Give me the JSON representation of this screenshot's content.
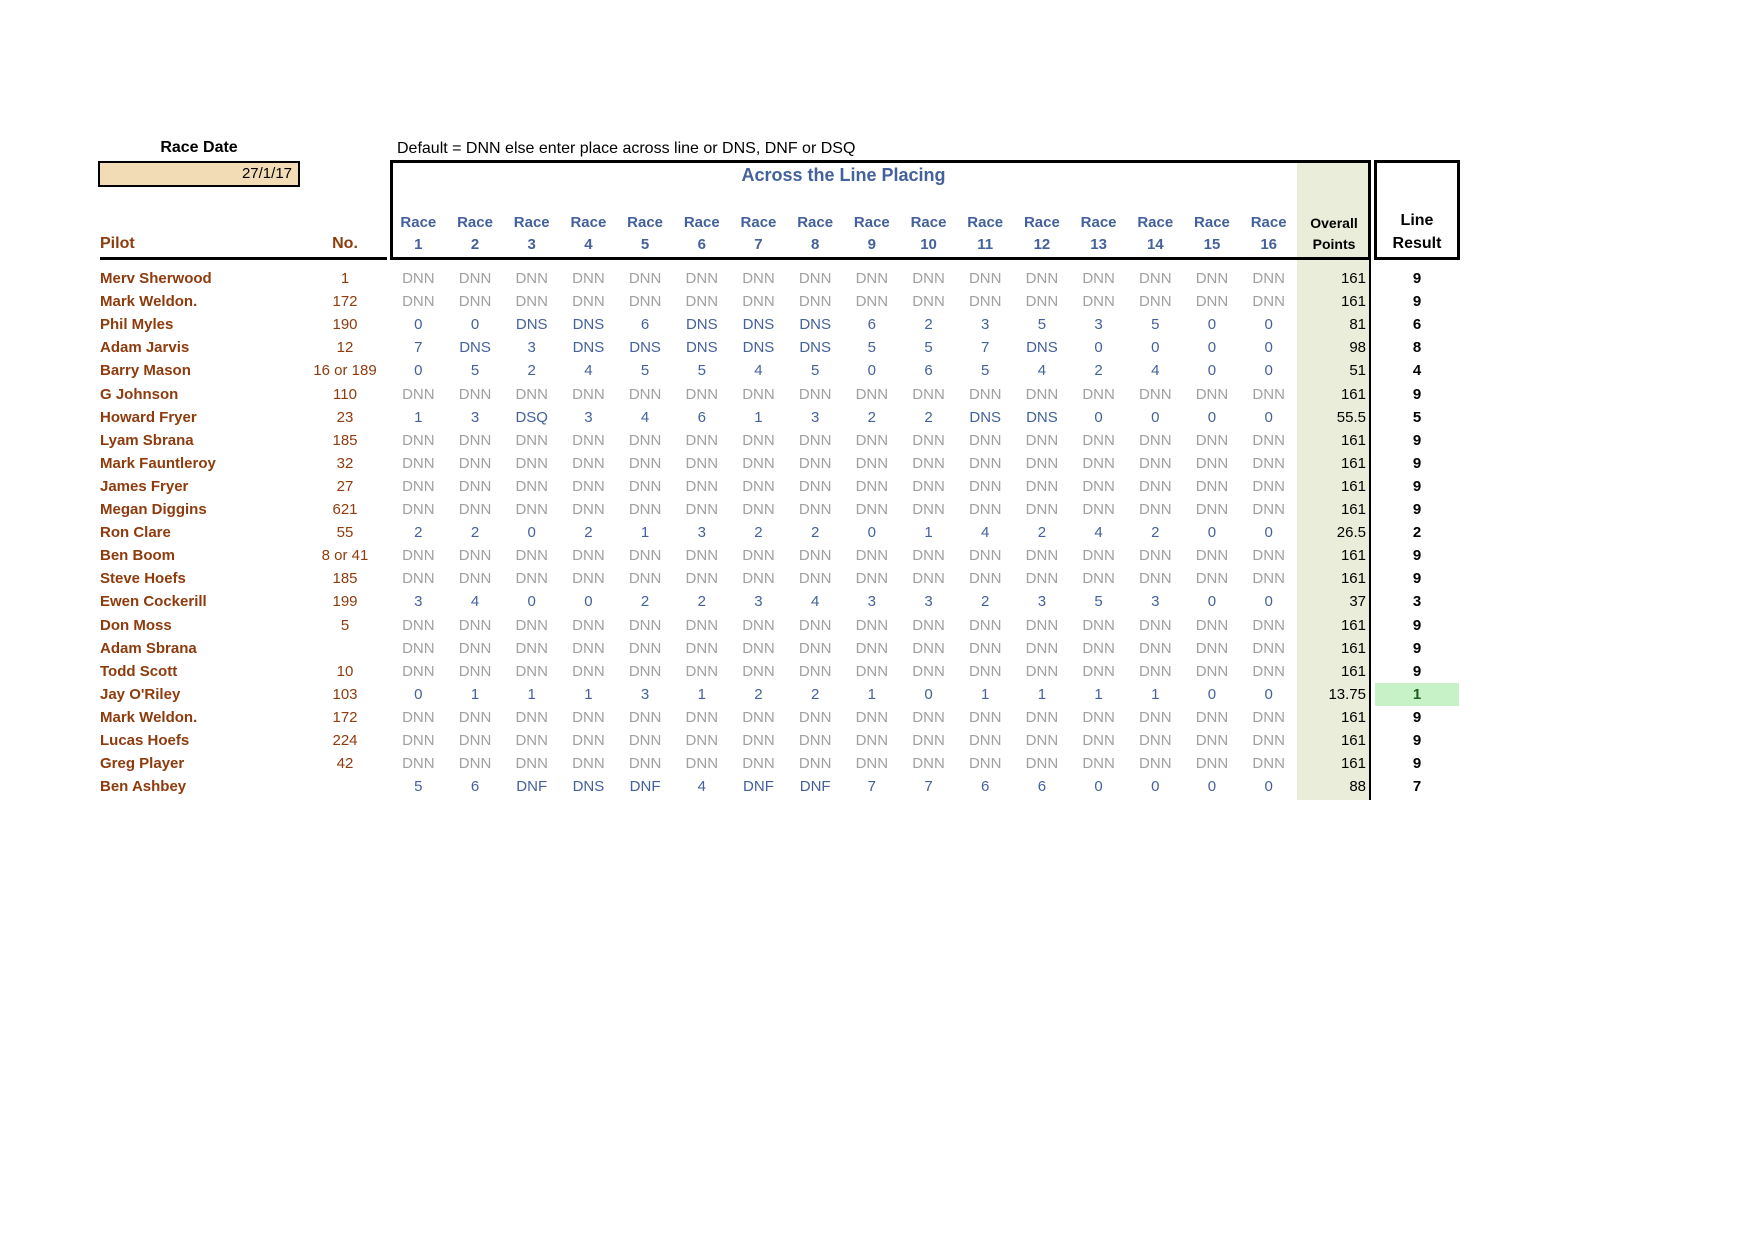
{
  "page": {
    "race_date_label": "Race Date",
    "race_date_value": "27/1/17",
    "instruction": "Default = DNN else enter place across line or DNS, DNF or DSQ"
  },
  "colors": {
    "pilot_brown": "#8E3B0D",
    "value_blue": "#44619B",
    "dnn_gray": "#A0A0A0",
    "overall_col_bg": "#EAEDDA",
    "date_cell_bg": "#F2DCB6",
    "highlight_bg": "#C7F2C7",
    "highlight_text": "#1E5B1E"
  },
  "table": {
    "title": "Across the Line Placing",
    "pilot_header": "Pilot",
    "no_header": "No.",
    "race_header_word": "Race",
    "race_numbers": [
      "1",
      "2",
      "3",
      "4",
      "5",
      "6",
      "7",
      "8",
      "9",
      "10",
      "11",
      "12",
      "13",
      "14",
      "15",
      "16"
    ],
    "overall_header_line1": "Overall",
    "overall_header_line2": "Points",
    "line_result_header_line1": "Line",
    "line_result_header_line2": "Result",
    "rows": [
      {
        "pilot": "Merv Sherwood",
        "no": "1",
        "races": [
          "DNN",
          "DNN",
          "DNN",
          "DNN",
          "DNN",
          "DNN",
          "DNN",
          "DNN",
          "DNN",
          "DNN",
          "DNN",
          "DNN",
          "DNN",
          "DNN",
          "DNN",
          "DNN"
        ],
        "overall": "161",
        "line_result": "9",
        "highlight": false
      },
      {
        "pilot": "Mark Weldon.",
        "no": "172",
        "races": [
          "DNN",
          "DNN",
          "DNN",
          "DNN",
          "DNN",
          "DNN",
          "DNN",
          "DNN",
          "DNN",
          "DNN",
          "DNN",
          "DNN",
          "DNN",
          "DNN",
          "DNN",
          "DNN"
        ],
        "overall": "161",
        "line_result": "9",
        "highlight": false
      },
      {
        "pilot": "Phil Myles",
        "no": "190",
        "races": [
          "0",
          "0",
          "DNS",
          "DNS",
          "6",
          "DNS",
          "DNS",
          "DNS",
          "6",
          "2",
          "3",
          "5",
          "3",
          "5",
          "0",
          "0"
        ],
        "overall": "81",
        "line_result": "6",
        "highlight": false
      },
      {
        "pilot": "Adam Jarvis",
        "no": "12",
        "races": [
          "7",
          "DNS",
          "3",
          "DNS",
          "DNS",
          "DNS",
          "DNS",
          "DNS",
          "5",
          "5",
          "7",
          "DNS",
          "0",
          "0",
          "0",
          "0"
        ],
        "overall": "98",
        "line_result": "8",
        "highlight": false
      },
      {
        "pilot": "Barry Mason",
        "no": "16 or 189",
        "races": [
          "0",
          "5",
          "2",
          "4",
          "5",
          "5",
          "4",
          "5",
          "0",
          "6",
          "5",
          "4",
          "2",
          "4",
          "0",
          "0"
        ],
        "overall": "51",
        "line_result": "4",
        "highlight": false
      },
      {
        "pilot": "G Johnson",
        "no": "110",
        "races": [
          "DNN",
          "DNN",
          "DNN",
          "DNN",
          "DNN",
          "DNN",
          "DNN",
          "DNN",
          "DNN",
          "DNN",
          "DNN",
          "DNN",
          "DNN",
          "DNN",
          "DNN",
          "DNN"
        ],
        "overall": "161",
        "line_result": "9",
        "highlight": false
      },
      {
        "pilot": "Howard Fryer",
        "no": "23",
        "races": [
          "1",
          "3",
          "DSQ",
          "3",
          "4",
          "6",
          "1",
          "3",
          "2",
          "2",
          "DNS",
          "DNS",
          "0",
          "0",
          "0",
          "0"
        ],
        "overall": "55.5",
        "line_result": "5",
        "highlight": false
      },
      {
        "pilot": "Lyam Sbrana",
        "no": "185",
        "races": [
          "DNN",
          "DNN",
          "DNN",
          "DNN",
          "DNN",
          "DNN",
          "DNN",
          "DNN",
          "DNN",
          "DNN",
          "DNN",
          "DNN",
          "DNN",
          "DNN",
          "DNN",
          "DNN"
        ],
        "overall": "161",
        "line_result": "9",
        "highlight": false
      },
      {
        "pilot": "Mark Fauntleroy",
        "no": "32",
        "races": [
          "DNN",
          "DNN",
          "DNN",
          "DNN",
          "DNN",
          "DNN",
          "DNN",
          "DNN",
          "DNN",
          "DNN",
          "DNN",
          "DNN",
          "DNN",
          "DNN",
          "DNN",
          "DNN"
        ],
        "overall": "161",
        "line_result": "9",
        "highlight": false
      },
      {
        "pilot": "James Fryer",
        "no": "27",
        "races": [
          "DNN",
          "DNN",
          "DNN",
          "DNN",
          "DNN",
          "DNN",
          "DNN",
          "DNN",
          "DNN",
          "DNN",
          "DNN",
          "DNN",
          "DNN",
          "DNN",
          "DNN",
          "DNN"
        ],
        "overall": "161",
        "line_result": "9",
        "highlight": false
      },
      {
        "pilot": "Megan Diggins",
        "no": "621",
        "races": [
          "DNN",
          "DNN",
          "DNN",
          "DNN",
          "DNN",
          "DNN",
          "DNN",
          "DNN",
          "DNN",
          "DNN",
          "DNN",
          "DNN",
          "DNN",
          "DNN",
          "DNN",
          "DNN"
        ],
        "overall": "161",
        "line_result": "9",
        "highlight": false
      },
      {
        "pilot": "Ron Clare",
        "no": "55",
        "races": [
          "2",
          "2",
          "0",
          "2",
          "1",
          "3",
          "2",
          "2",
          "0",
          "1",
          "4",
          "2",
          "4",
          "2",
          "0",
          "0"
        ],
        "overall": "26.5",
        "line_result": "2",
        "highlight": false
      },
      {
        "pilot": "Ben Boom",
        "no": "8 or 41",
        "races": [
          "DNN",
          "DNN",
          "DNN",
          "DNN",
          "DNN",
          "DNN",
          "DNN",
          "DNN",
          "DNN",
          "DNN",
          "DNN",
          "DNN",
          "DNN",
          "DNN",
          "DNN",
          "DNN"
        ],
        "overall": "161",
        "line_result": "9",
        "highlight": false
      },
      {
        "pilot": "Steve Hoefs",
        "no": "185",
        "races": [
          "DNN",
          "DNN",
          "DNN",
          "DNN",
          "DNN",
          "DNN",
          "DNN",
          "DNN",
          "DNN",
          "DNN",
          "DNN",
          "DNN",
          "DNN",
          "DNN",
          "DNN",
          "DNN"
        ],
        "overall": "161",
        "line_result": "9",
        "highlight": false
      },
      {
        "pilot": "Ewen Cockerill",
        "no": "199",
        "races": [
          "3",
          "4",
          "0",
          "0",
          "2",
          "2",
          "3",
          "4",
          "3",
          "3",
          "2",
          "3",
          "5",
          "3",
          "0",
          "0"
        ],
        "overall": "37",
        "line_result": "3",
        "highlight": false
      },
      {
        "pilot": "Don Moss",
        "no": "5",
        "races": [
          "DNN",
          "DNN",
          "DNN",
          "DNN",
          "DNN",
          "DNN",
          "DNN",
          "DNN",
          "DNN",
          "DNN",
          "DNN",
          "DNN",
          "DNN",
          "DNN",
          "DNN",
          "DNN"
        ],
        "overall": "161",
        "line_result": "9",
        "highlight": false
      },
      {
        "pilot": "Adam Sbrana",
        "no": "",
        "races": [
          "DNN",
          "DNN",
          "DNN",
          "DNN",
          "DNN",
          "DNN",
          "DNN",
          "DNN",
          "DNN",
          "DNN",
          "DNN",
          "DNN",
          "DNN",
          "DNN",
          "DNN",
          "DNN"
        ],
        "overall": "161",
        "line_result": "9",
        "highlight": false
      },
      {
        "pilot": "Todd Scott",
        "no": "10",
        "races": [
          "DNN",
          "DNN",
          "DNN",
          "DNN",
          "DNN",
          "DNN",
          "DNN",
          "DNN",
          "DNN",
          "DNN",
          "DNN",
          "DNN",
          "DNN",
          "DNN",
          "DNN",
          "DNN"
        ],
        "overall": "161",
        "line_result": "9",
        "highlight": false
      },
      {
        "pilot": "Jay O'Riley",
        "no": "103",
        "races": [
          "0",
          "1",
          "1",
          "1",
          "3",
          "1",
          "2",
          "2",
          "1",
          "0",
          "1",
          "1",
          "1",
          "1",
          "0",
          "0"
        ],
        "overall": "13.75",
        "line_result": "1",
        "highlight": true
      },
      {
        "pilot": "Mark Weldon.",
        "no": "172",
        "races": [
          "DNN",
          "DNN",
          "DNN",
          "DNN",
          "DNN",
          "DNN",
          "DNN",
          "DNN",
          "DNN",
          "DNN",
          "DNN",
          "DNN",
          "DNN",
          "DNN",
          "DNN",
          "DNN"
        ],
        "overall": "161",
        "line_result": "9",
        "highlight": false
      },
      {
        "pilot": "Lucas Hoefs",
        "no": "224",
        "races": [
          "DNN",
          "DNN",
          "DNN",
          "DNN",
          "DNN",
          "DNN",
          "DNN",
          "DNN",
          "DNN",
          "DNN",
          "DNN",
          "DNN",
          "DNN",
          "DNN",
          "DNN",
          "DNN"
        ],
        "overall": "161",
        "line_result": "9",
        "highlight": false
      },
      {
        "pilot": "Greg Player",
        "no": "42",
        "races": [
          "DNN",
          "DNN",
          "DNN",
          "DNN",
          "DNN",
          "DNN",
          "DNN",
          "DNN",
          "DNN",
          "DNN",
          "DNN",
          "DNN",
          "DNN",
          "DNN",
          "DNN",
          "DNN"
        ],
        "overall": "161",
        "line_result": "9",
        "highlight": false
      },
      {
        "pilot": "Ben Ashbey",
        "no": "",
        "races": [
          "5",
          "6",
          "DNF",
          "DNS",
          "DNF",
          "4",
          "DNF",
          "DNF",
          "7",
          "7",
          "6",
          "6",
          "0",
          "0",
          "0",
          "0"
        ],
        "overall": "88",
        "line_result": "7",
        "highlight": false
      }
    ]
  }
}
